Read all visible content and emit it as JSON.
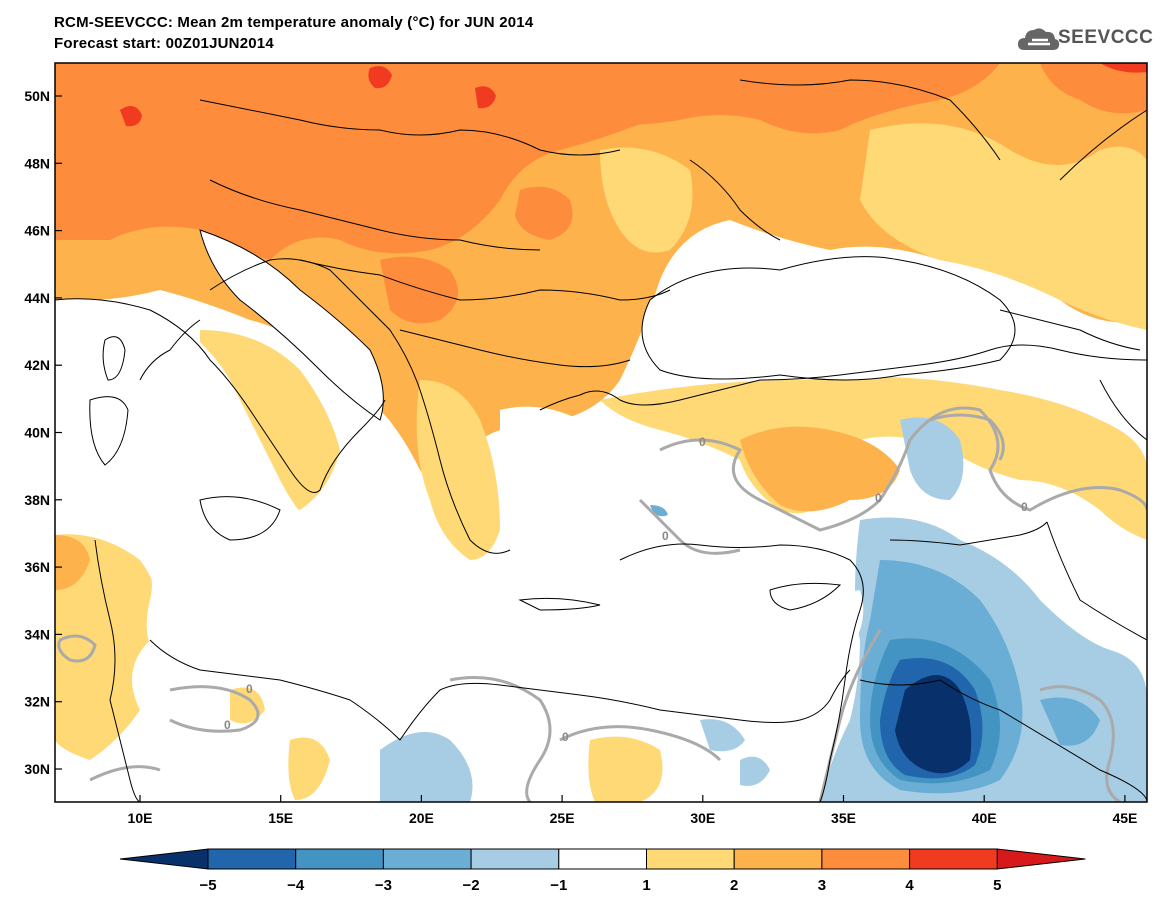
{
  "title": {
    "line1": "RCM-SEEVCCC: Mean 2m temperature anomaly (°C) for JUN 2014",
    "line2": "Forecast start: 00Z01JUN2014"
  },
  "logo": {
    "text": "SEEVCCC"
  },
  "axes": {
    "lat_labels": [
      "50N",
      "48N",
      "46N",
      "44N",
      "42N",
      "40N",
      "38N",
      "36N",
      "34N",
      "32N",
      "30N"
    ],
    "lon_labels": [
      "10E",
      "15E",
      "20E",
      "25E",
      "30E",
      "35E",
      "40E",
      "45E"
    ]
  },
  "colorbar": {
    "ticks": [
      "−5",
      "−4",
      "−3",
      "−2",
      "−1",
      "1",
      "2",
      "3",
      "4",
      "5"
    ],
    "colors": [
      "#08306b",
      "#2166ac",
      "#4393c3",
      "#6aaed6",
      "#a6cde3",
      "#ffffff",
      "#fed976",
      "#feb24c",
      "#fd8d3c",
      "#f03b20",
      "#d7191c"
    ]
  },
  "contour_label": "0"
}
